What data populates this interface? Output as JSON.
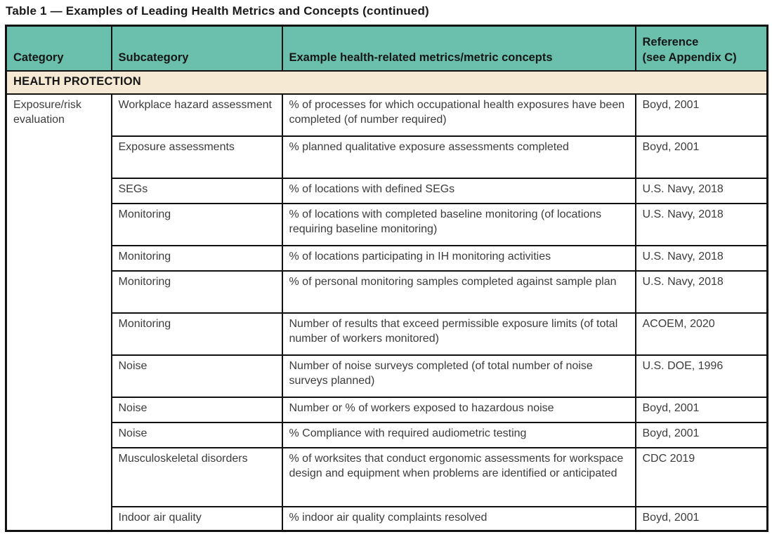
{
  "title": "Table 1 — Examples of Leading Health Metrics and Concepts (continued)",
  "colors": {
    "header_bg": "#6ac0ac",
    "section_bg": "#f6e9d4",
    "border": "#111111",
    "body_text": "#3c3c3c",
    "heading_text": "#161616"
  },
  "table": {
    "headers": [
      "Category",
      "Subcategory",
      "Example health-related metrics/metric concepts",
      "Reference\n(see Appendix C)"
    ],
    "section": "HEALTH PROTECTION",
    "category": "Exposure/risk\nevaluation",
    "rows": [
      {
        "subcategory": "Workplace hazard assessment",
        "metric": "% of processes for which occupational health exposures have been completed (of number required)",
        "reference": "Boyd, 2001"
      },
      {
        "subcategory": "Exposure assessments",
        "metric": "% planned qualitative exposure assessments completed",
        "reference": "Boyd, 2001"
      },
      {
        "subcategory": "SEGs",
        "metric": "% of locations with defined SEGs",
        "reference": "U.S. Navy, 2018"
      },
      {
        "subcategory": "Monitoring",
        "metric": "% of locations with completed baseline monitoring (of locations requiring baseline monitoring)",
        "reference": "U.S. Navy, 2018"
      },
      {
        "subcategory": "Monitoring",
        "metric": "% of locations participating in IH monitoring activities",
        "reference": "U.S. Navy, 2018"
      },
      {
        "subcategory": "Monitoring",
        "metric": "% of personal monitoring samples completed against sample plan",
        "reference": "U.S. Navy, 2018"
      },
      {
        "subcategory": "Monitoring",
        "metric": "Number of results that exceed permissible exposure limits (of total number of workers monitored)",
        "reference": "ACOEM, 2020"
      },
      {
        "subcategory": "Noise",
        "metric": "Number of noise surveys completed (of total number of noise surveys planned)",
        "reference": "U.S. DOE, 1996"
      },
      {
        "subcategory": "Noise",
        "metric": "Number or % of workers exposed to hazardous noise",
        "reference": "Boyd, 2001"
      },
      {
        "subcategory": "Noise",
        "metric": "% Compliance with required audiometric testing",
        "reference": "Boyd, 2001"
      },
      {
        "subcategory": "Musculoskeletal disorders",
        "metric": "% of worksites that conduct ergonomic assessments for workspace design and equipment when problems are identified or anticipated",
        "reference": "CDC 2019"
      },
      {
        "subcategory": "Indoor air quality",
        "metric": "% indoor air quality complaints resolved",
        "reference": "Boyd, 2001"
      }
    ]
  }
}
